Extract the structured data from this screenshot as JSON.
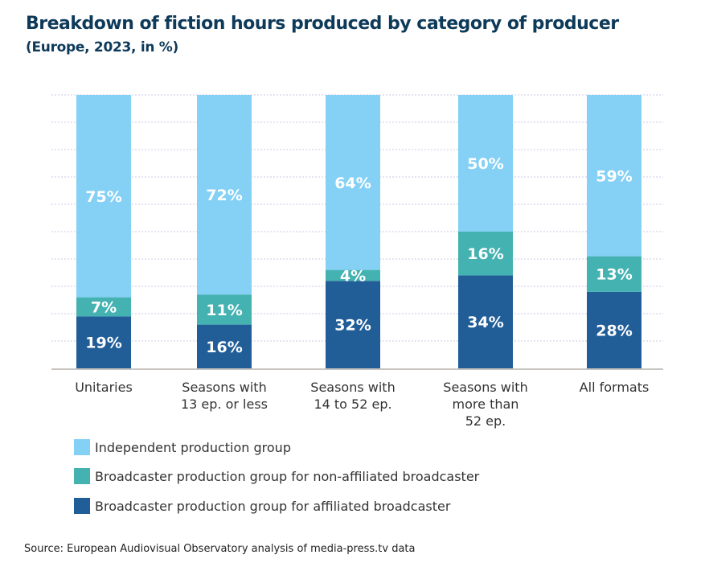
{
  "chart_data": {
    "type": "bar",
    "stacked": true,
    "title": "Breakdown of fiction hours produced by category of producer",
    "subtitle": "(Europe, 2023, in %)",
    "categories": [
      [
        "Unitaries"
      ],
      [
        "Seasons with",
        "13 ep. or less"
      ],
      [
        "Seasons with",
        "14 to 52 ep."
      ],
      [
        "Seasons with",
        "more than",
        "52 ep."
      ],
      [
        "All formats"
      ]
    ],
    "series": [
      {
        "name": "Broadcaster production group for affiliated broadcaster",
        "color": "#215e98",
        "values": [
          19,
          16,
          32,
          34,
          28
        ]
      },
      {
        "name": "Broadcaster production group for non-affiliated broadcaster",
        "color": "#43b2b1",
        "values": [
          7,
          11,
          4,
          16,
          13
        ]
      },
      {
        "name": "Independent production group",
        "color": "#85d0f5",
        "values": [
          75,
          72,
          64,
          50,
          59
        ]
      }
    ],
    "legend_order": [
      2,
      1,
      0
    ],
    "ylim": [
      0,
      100
    ],
    "grid": true,
    "legend_position": "bottom-left",
    "source": "Source: European Audiovisual Observatory analysis of media-press.tv data"
  }
}
